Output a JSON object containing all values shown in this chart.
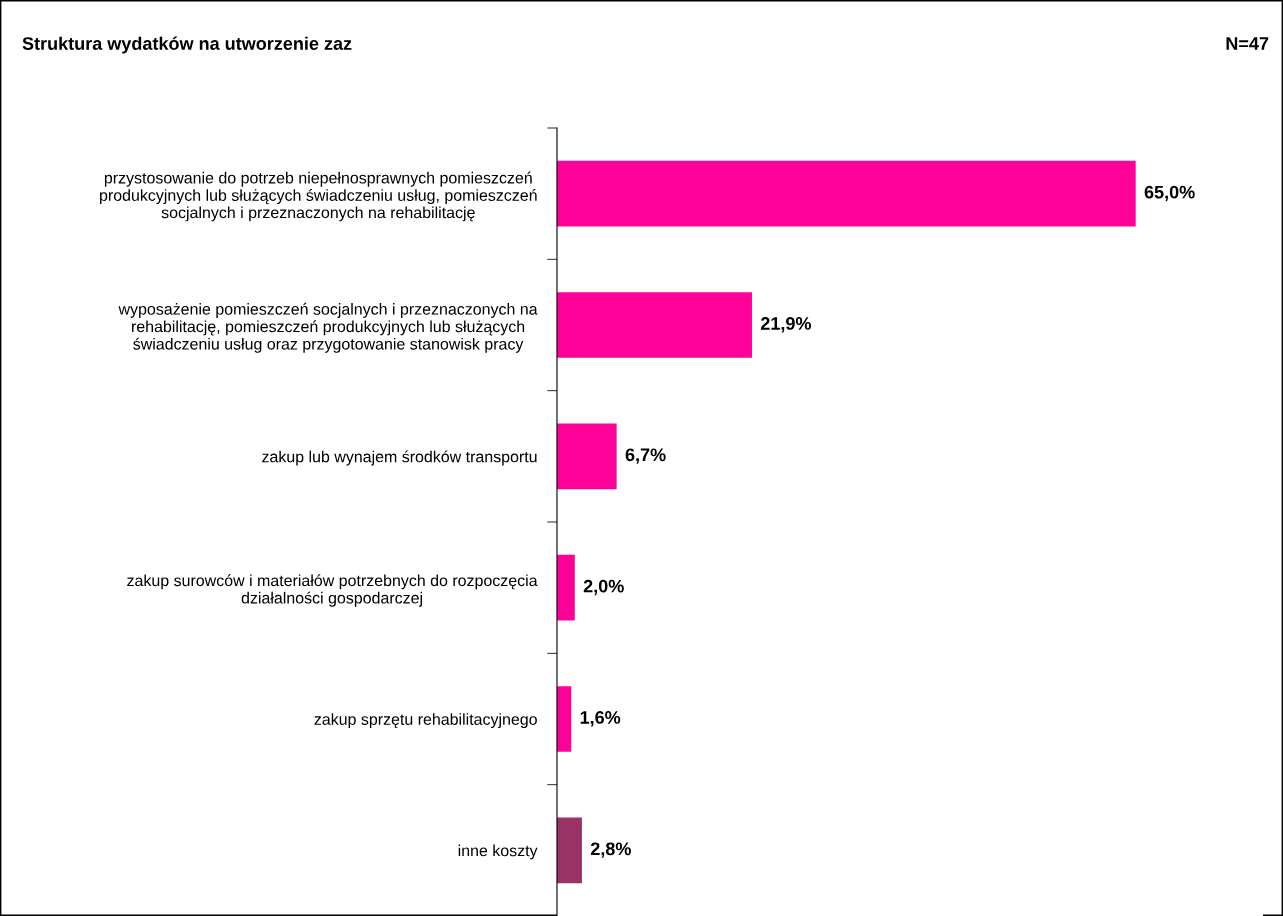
{
  "chart_data": {
    "type": "bar",
    "orientation": "horizontal",
    "title": "Struktura wydatków na utworzenie zaz",
    "annotations": [
      "N=47"
    ],
    "categories": [
      "przystosowanie do potrzeb niepełnosprawnych pomieszczeń\nprodukcyjnych lub służących świadczeniu usług, pomieszczeń\nsocjalnych i przeznaczonych na rehabilitację",
      "wyposażenie pomieszczeń socjalnych i przeznaczonych na\nrehabilitację, pomieszczeń produkcyjnych lub służących\nświadczeniu usług oraz przygotowanie stanowisk pracy",
      "zakup lub wynajem środków transportu",
      "zakup surowców i materiałów potrzebnych do rozpoczęcia\ndziałalności gospodarczej",
      "zakup sprzętu rehabilitacyjnego",
      "inne koszty"
    ],
    "values": [
      65.0,
      21.9,
      6.7,
      2.0,
      1.6,
      2.8
    ],
    "value_labels": [
      "65,0%",
      "21,9%",
      "6,7%",
      "2,0%",
      "1,6%",
      "2,8%"
    ],
    "colors": [
      "#ff0099",
      "#ff0099",
      "#ff0099",
      "#ff0099",
      "#ff0099",
      "#993366"
    ],
    "grid": false,
    "legend": false
  }
}
